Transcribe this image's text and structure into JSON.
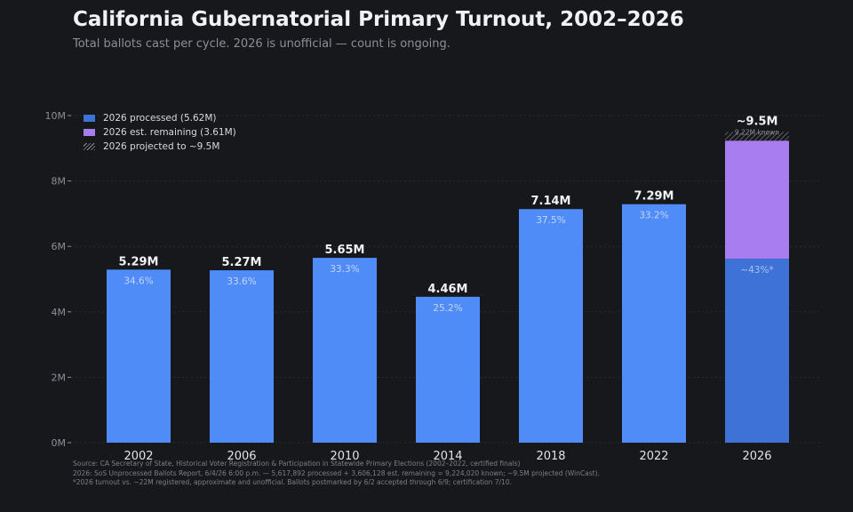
{
  "title": "California Gubernatorial Primary Turnout, 2002–2026",
  "subtitle": "Total ballots cast per cycle. 2026 is unofficial — count is ongoing.",
  "legend": {
    "processed": "2026 processed (5.62M)",
    "remaining": "2026 est. remaining (3.61M)",
    "projected": "2026 projected to ~9.5M"
  },
  "source": {
    "line1": "Source: CA Secretary of State, Historical Voter Registration & Participation in Statewide Primary Elections (2002–2022, certified finals)",
    "line2": "2026: SoS Unprocessed Ballots Report, 6/4/26 6:00 p.m. — 5,617,892 processed + 3,606,128 est. remaining = 9,224,020 known; ~9.5M projected (WinCast).",
    "line3": "*2026 turnout vs. ~22M registered, approximate and unofficial. Ballots postmarked by 6/2 accepted through 6/9; certification 7/10."
  },
  "colors": {
    "bar": "#4f8cf7",
    "processed": "#3f72d6",
    "remaining": "#a87df0",
    "projected_hatch": "#8a8d94",
    "grid": "#2a2c33",
    "axis_text": "#8c8f96",
    "tick_text": "#e2e3e6"
  },
  "chart_data": {
    "type": "bar",
    "stacked_last": true,
    "categories": [
      "2002",
      "2006",
      "2010",
      "2014",
      "2018",
      "2022",
      "2026"
    ],
    "values": [
      5.29,
      5.27,
      5.65,
      4.46,
      7.14,
      7.29,
      9.22
    ],
    "value_labels": [
      "5.29M",
      "5.27M",
      "5.65M",
      "4.46M",
      "7.14M",
      "7.29M",
      "~9.5M"
    ],
    "turnout_labels": [
      "34.6%",
      "33.6%",
      "33.3%",
      "25.2%",
      "37.5%",
      "33.2%",
      "~43%*"
    ],
    "stack_2026": {
      "processed": 5.62,
      "remaining": 3.61,
      "projected_total": 9.5,
      "known_label": "9.22M known"
    },
    "ylim": [
      0,
      10
    ],
    "yticks": [
      0,
      2,
      4,
      6,
      8,
      10
    ],
    "ytick_labels": [
      "0M",
      "2M",
      "4M",
      "6M",
      "8M",
      "10M"
    ],
    "grid": true,
    "legend_position": "top-left"
  }
}
